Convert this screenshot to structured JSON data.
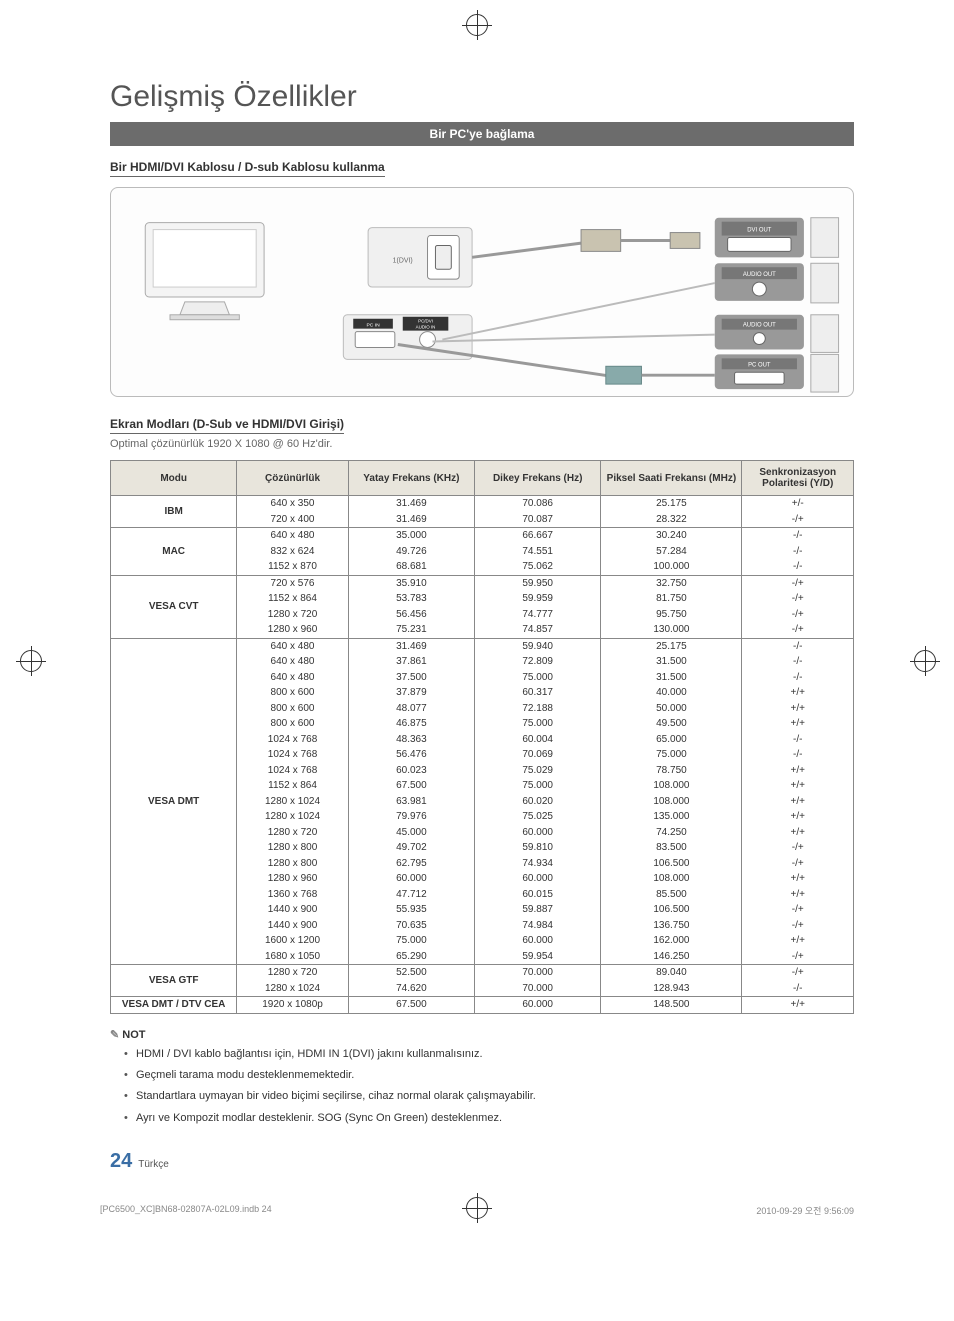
{
  "heading": "Gelişmiş Özellikler",
  "section_bar": "Bir PC'ye bağlama",
  "sub_heading_1": "Bir HDMI/DVI Kablosu / D-sub Kablosu kullanma",
  "diagram_labels": {
    "hdmi_dvi": "1(DVI)",
    "pc_in": "PC IN",
    "pc_dvi_audio_in": "PC/DVI\nAUDIO IN",
    "dvi_out": "DVI OUT",
    "audio_out_1": "AUDIO OUT",
    "audio_out_2": "AUDIO OUT",
    "pc_out": "PC OUT"
  },
  "sub_heading_2": "Ekran Modları (D-Sub ve HDMI/DVI Girişi)",
  "optimal_text": "Optimal çözünürlük 1920 X 1080 @ 60 Hz'dir.",
  "table": {
    "headers": [
      "Modu",
      "Çözünürlük",
      "Yatay Frekans (KHz)",
      "Dikey Frekans (Hz)",
      "Piksel Saati Frekansı (MHz)",
      "Senkronizasyon Polaritesi (Y/D)"
    ],
    "col_widths": [
      "17%",
      "15%",
      "17%",
      "17%",
      "19%",
      "15%"
    ],
    "header_bg": "#e8e5dc",
    "border_color": "#888888",
    "groups": [
      {
        "mode": "IBM",
        "rows": [
          [
            "640 x 350",
            "31.469",
            "70.086",
            "25.175",
            "+/-"
          ],
          [
            "720 x 400",
            "31.469",
            "70.087",
            "28.322",
            "-/+"
          ]
        ]
      },
      {
        "mode": "MAC",
        "rows": [
          [
            "640 x 480",
            "35.000",
            "66.667",
            "30.240",
            "-/-"
          ],
          [
            "832 x 624",
            "49.726",
            "74.551",
            "57.284",
            "-/-"
          ],
          [
            "1152 x 870",
            "68.681",
            "75.062",
            "100.000",
            "-/-"
          ]
        ]
      },
      {
        "mode": "VESA CVT",
        "rows": [
          [
            "720 x 576",
            "35.910",
            "59.950",
            "32.750",
            "-/+"
          ],
          [
            "1152 x 864",
            "53.783",
            "59.959",
            "81.750",
            "-/+"
          ],
          [
            "1280 x 720",
            "56.456",
            "74.777",
            "95.750",
            "-/+"
          ],
          [
            "1280 x 960",
            "75.231",
            "74.857",
            "130.000",
            "-/+"
          ]
        ]
      },
      {
        "mode": "VESA DMT",
        "rows": [
          [
            "640 x 480",
            "31.469",
            "59.940",
            "25.175",
            "-/-"
          ],
          [
            "640 x 480",
            "37.861",
            "72.809",
            "31.500",
            "-/-"
          ],
          [
            "640 x 480",
            "37.500",
            "75.000",
            "31.500",
            "-/-"
          ],
          [
            "800 x 600",
            "37.879",
            "60.317",
            "40.000",
            "+/+"
          ],
          [
            "800 x 600",
            "48.077",
            "72.188",
            "50.000",
            "+/+"
          ],
          [
            "800 x 600",
            "46.875",
            "75.000",
            "49.500",
            "+/+"
          ],
          [
            "1024 x 768",
            "48.363",
            "60.004",
            "65.000",
            "-/-"
          ],
          [
            "1024 x 768",
            "56.476",
            "70.069",
            "75.000",
            "-/-"
          ],
          [
            "1024 x 768",
            "60.023",
            "75.029",
            "78.750",
            "+/+"
          ],
          [
            "1152 x 864",
            "67.500",
            "75.000",
            "108.000",
            "+/+"
          ],
          [
            "1280 x 1024",
            "63.981",
            "60.020",
            "108.000",
            "+/+"
          ],
          [
            "1280 x 1024",
            "79.976",
            "75.025",
            "135.000",
            "+/+"
          ],
          [
            "1280 x 720",
            "45.000",
            "60.000",
            "74.250",
            "+/+"
          ],
          [
            "1280 x 800",
            "49.702",
            "59.810",
            "83.500",
            "-/+"
          ],
          [
            "1280 x 800",
            "62.795",
            "74.934",
            "106.500",
            "-/+"
          ],
          [
            "1280 x 960",
            "60.000",
            "60.000",
            "108.000",
            "+/+"
          ],
          [
            "1360 x 768",
            "47.712",
            "60.015",
            "85.500",
            "+/+"
          ],
          [
            "1440 x 900",
            "55.935",
            "59.887",
            "106.500",
            "-/+"
          ],
          [
            "1440 x 900",
            "70.635",
            "74.984",
            "136.750",
            "-/+"
          ],
          [
            "1600 x 1200",
            "75.000",
            "60.000",
            "162.000",
            "+/+"
          ],
          [
            "1680 x 1050",
            "65.290",
            "59.954",
            "146.250",
            "-/+"
          ]
        ]
      },
      {
        "mode": "VESA GTF",
        "rows": [
          [
            "1280 x 720",
            "52.500",
            "70.000",
            "89.040",
            "-/+"
          ],
          [
            "1280 x 1024",
            "74.620",
            "70.000",
            "128.943",
            "-/-"
          ]
        ]
      },
      {
        "mode": "VESA DMT / DTV CEA",
        "rows": [
          [
            "1920 x 1080p",
            "67.500",
            "60.000",
            "148.500",
            "+/+"
          ]
        ]
      }
    ]
  },
  "note_label": "NOT",
  "notes": [
    "HDMI / DVI kablo bağlantısı için, HDMI IN 1(DVI) jakını kullanmalısınız.",
    "Geçmeli tarama modu desteklenmemektedir.",
    "Standartlara uymayan bir video biçimi seçilirse, cihaz normal olarak çalışmayabilir.",
    "Ayrı ve Kompozit modlar desteklenir. SOG (Sync On Green) desteklenmez."
  ],
  "page_number": "24",
  "page_lang": "Türkçe",
  "footer_left": "[PC6500_XC]BN68-02807A-02L09.indb   24",
  "footer_right": "2010-09-29   오전 9:56:09"
}
